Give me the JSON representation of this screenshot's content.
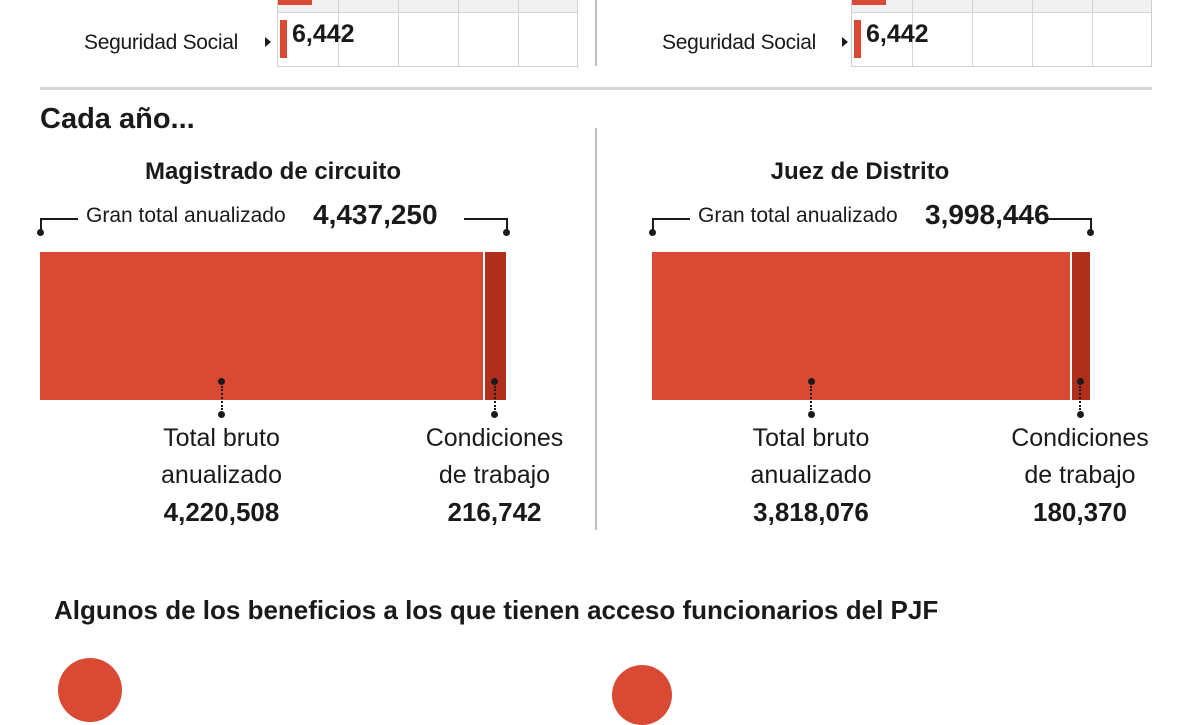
{
  "top_section": {
    "left": {
      "label": "Seguridad Social",
      "value": "6,442"
    },
    "right": {
      "label": "Seguridad Social",
      "value": "6,442"
    }
  },
  "section_title": "Cada año...",
  "chart_data": [
    {
      "type": "bar",
      "orientation": "horizontal-stacked",
      "title": "Magistrado de circuito",
      "total_label": "Gran total anualizado",
      "total_display": "4,437,250",
      "total": 4437250,
      "segments": [
        {
          "label_line1": "Total bruto",
          "label_line2": "anualizado",
          "value_display": "4,220,508",
          "value": 4220508,
          "color": "#d94a35"
        },
        {
          "label_line1": "Condiciones",
          "label_line2": "de trabajo",
          "value_display": "216,742",
          "value": 216742,
          "color": "#b02e1c"
        }
      ]
    },
    {
      "type": "bar",
      "orientation": "horizontal-stacked",
      "title": "Juez de Distrito",
      "total_label": "Gran total anualizado",
      "total_display": "3,998,446",
      "total": 3998446,
      "segments": [
        {
          "label_line1": "Total bruto",
          "label_line2": "anualizado",
          "value_display": "3,818,076",
          "value": 3818076,
          "color": "#d94a35"
        },
        {
          "label_line1": "Condiciones",
          "label_line2": "de trabajo",
          "value_display": "180,370",
          "value": 180370,
          "color": "#b02e1c"
        }
      ]
    }
  ],
  "benefits_title": "Algunos de los beneficios a los que tienen acceso funcionarios del PJF",
  "colors": {
    "accent": "#d94a35",
    "accent_dark": "#b02e1c",
    "divider": "#d6d6d6"
  }
}
